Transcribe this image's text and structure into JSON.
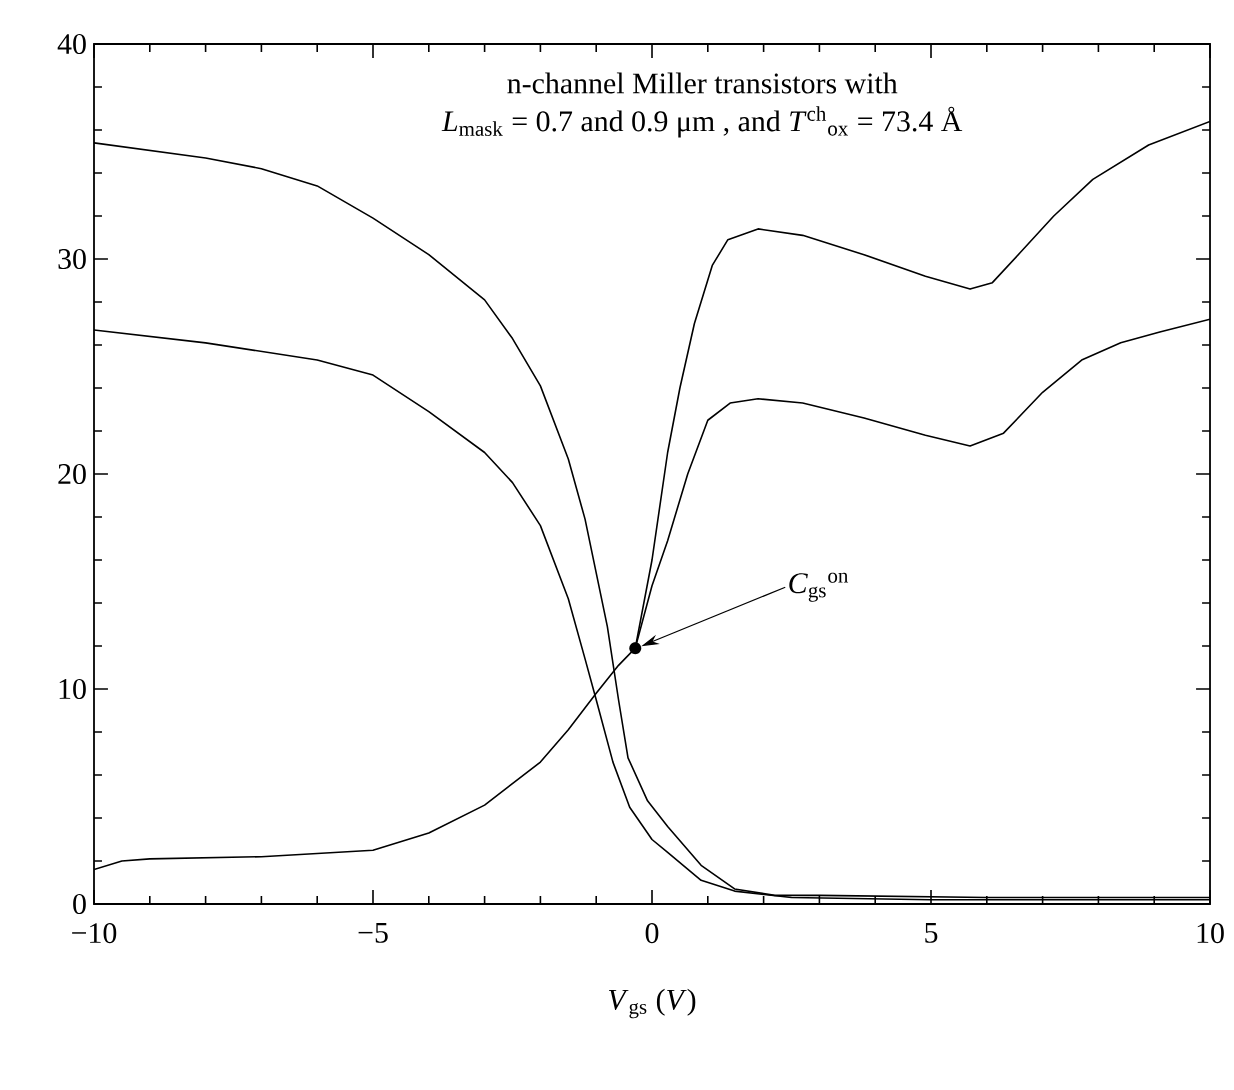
{
  "chart_data": {
    "type": "line",
    "xlabel": "*V*$_{gs}$ (*V*)",
    "xlim": [
      -10,
      10
    ],
    "ylim": [
      0,
      40
    ],
    "xticks": [
      {
        "value": -10,
        "label": "−10"
      },
      {
        "value": -5,
        "label": "−5"
      },
      0,
      5,
      10
    ],
    "yticks": [
      0,
      10,
      20,
      30,
      40
    ],
    "grid": false,
    "line_style": "solid",
    "series": [
      {
        "color": "#000000",
        "x": [
          -10,
          -8,
          -7,
          -6,
          -5,
          -4,
          -3,
          -2.5,
          -2,
          -1.5,
          -1.2,
          -1,
          -0.8,
          -0.6,
          -0.43,
          -0.08,
          0.28,
          0.88,
          1.48,
          2.2,
          3,
          6,
          10
        ],
        "values": [
          35.4,
          34.7,
          34.2,
          33.4,
          31.9,
          30.2,
          28.1,
          26.3,
          24.1,
          20.7,
          17.9,
          15.4,
          12.9,
          9.5,
          6.8,
          4.8,
          3.6,
          1.8,
          0.7,
          0.4,
          0.4,
          0.3,
          0.3
        ]
      },
      {
        "color": "#000000",
        "x": [
          -10,
          -8,
          -6,
          -5,
          -4,
          -3,
          -2.5,
          -2,
          -1.5,
          -1.2,
          -1,
          -0.7,
          -0.4,
          0,
          0.28,
          0.88,
          1.48,
          2.5,
          5,
          10
        ],
        "values": [
          26.7,
          26.1,
          25.3,
          24.6,
          22.9,
          21.0,
          19.6,
          17.6,
          14.2,
          11.4,
          9.5,
          6.6,
          4.5,
          3.0,
          2.4,
          1.1,
          0.6,
          0.3,
          0.2,
          0.2
        ]
      },
      {
        "color": "#000000",
        "x": [
          -10,
          -9.5,
          -9,
          -7,
          -5,
          -4,
          -3,
          -2,
          -1.5,
          -1,
          -0.6,
          -0.3,
          0,
          0.28,
          0.5,
          0.76,
          1.08,
          1.36,
          1.9,
          2.7,
          3.8,
          4.9,
          5.7,
          6.1,
          6.6,
          7.2,
          7.9,
          8.9,
          10
        ],
        "values": [
          1.6,
          2.0,
          2.1,
          2.2,
          2.5,
          3.3,
          4.6,
          6.6,
          8.1,
          9.8,
          11.1,
          11.9,
          16.0,
          21.0,
          24.0,
          27.0,
          29.7,
          30.9,
          31.4,
          31.1,
          30.2,
          29.2,
          28.6,
          28.9,
          30.3,
          32.0,
          33.7,
          35.3,
          36.4
        ]
      },
      {
        "color": "#000000",
        "x": [
          -0.3,
          0,
          0.28,
          0.64,
          1.0,
          1.4,
          1.9,
          2.7,
          3.8,
          4.9,
          5.7,
          6.3,
          7.0,
          7.7,
          8.4,
          9.1,
          10
        ],
        "values": [
          11.9,
          14.8,
          16.9,
          20.0,
          22.5,
          23.3,
          23.5,
          23.3,
          22.6,
          21.8,
          21.3,
          21.9,
          23.8,
          25.3,
          26.1,
          26.6,
          27.2
        ]
      }
    ],
    "annotations": [
      "n-channel Miller transistors with",
      "*L*$_{mask}$ = 0.7 and 0.9 μm , and *T*$^{ch}$$_{ox}$ = 73.4 Å",
      {
        "text": "*C*$_{gs}$$^{on}$",
        "x": -0.3,
        "y": 11.9
      }
    ]
  }
}
